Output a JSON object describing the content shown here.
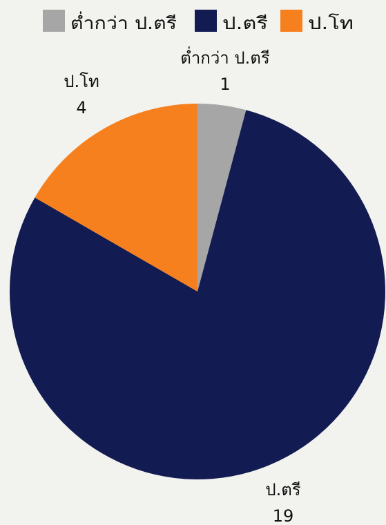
{
  "chart_data": {
    "type": "pie",
    "title": "",
    "legend_position": "top",
    "start_angle_deg": 0,
    "direction": "clockwise",
    "slices": [
      {
        "label": "ต่ำกว่า ป.ตรี",
        "value": 1,
        "color": "#a6a6a6"
      },
      {
        "label": "ป.ตรี",
        "value": 19,
        "color": "#121c52"
      },
      {
        "label": "ป.โท",
        "value": 4,
        "color": "#f7801e"
      }
    ]
  }
}
